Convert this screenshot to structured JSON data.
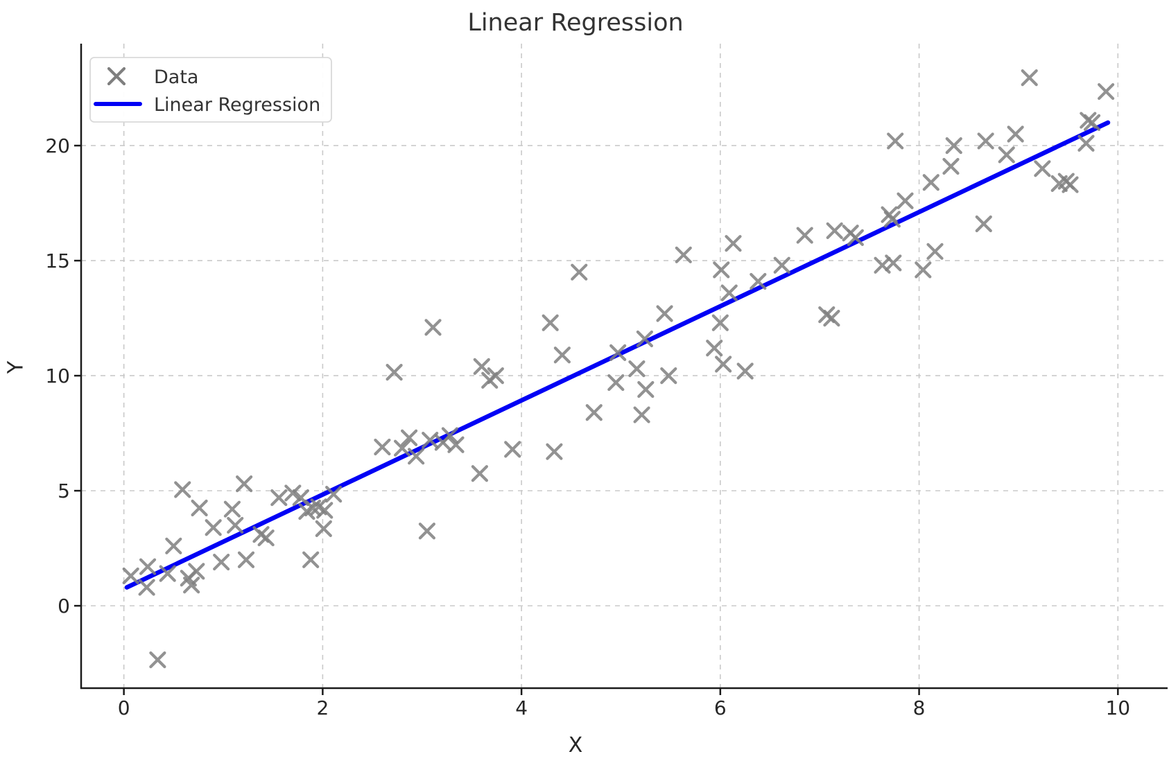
{
  "title": "Linear Regression",
  "axes": {
    "xlabel": "X",
    "ylabel": "Y",
    "x_ticks": [
      0,
      2,
      4,
      6,
      8,
      10
    ],
    "y_ticks": [
      0,
      5,
      10,
      15,
      20
    ],
    "xlim": [
      -0.43,
      10.5
    ],
    "ylim": [
      -3.58,
      24.43
    ],
    "grid": "dashed"
  },
  "legend": {
    "position": "upper-left",
    "items": [
      {
        "label": "Data",
        "glyph": "x-marker"
      },
      {
        "label": "Linear Regression",
        "glyph": "line"
      }
    ]
  },
  "colors": {
    "marker": "#7f7f7f",
    "regression_line": "#0000f5",
    "grid": "#c9c9c9",
    "spine": "#1a1a1a",
    "tick_text": "#262626",
    "title_text": "#333333"
  },
  "chart_data": {
    "type": "scatter",
    "title": "Linear Regression",
    "xlabel": "X",
    "ylabel": "Y",
    "xlim": [
      -0.43,
      10.5
    ],
    "ylim": [
      -3.58,
      24.43
    ],
    "legend_position": "upper-left",
    "grid": true,
    "series": [
      {
        "name": "Data",
        "type": "scatter",
        "marker": "x",
        "points": [
          [
            0.07,
            1.3
          ],
          [
            0.23,
            0.8
          ],
          [
            0.24,
            1.7
          ],
          [
            0.34,
            -2.35
          ],
          [
            0.44,
            1.4
          ],
          [
            0.5,
            2.6
          ],
          [
            0.59,
            5.05
          ],
          [
            0.65,
            1.2
          ],
          [
            0.68,
            0.9
          ],
          [
            0.73,
            1.5
          ],
          [
            0.76,
            4.25
          ],
          [
            0.9,
            3.4
          ],
          [
            0.98,
            1.9
          ],
          [
            1.09,
            4.2
          ],
          [
            1.12,
            3.5
          ],
          [
            1.21,
            5.3
          ],
          [
            1.23,
            2.0
          ],
          [
            1.38,
            3.1
          ],
          [
            1.43,
            2.95
          ],
          [
            1.56,
            4.7
          ],
          [
            1.7,
            4.9
          ],
          [
            1.78,
            4.7
          ],
          [
            1.84,
            4.1
          ],
          [
            1.9,
            4.25
          ],
          [
            1.96,
            4.3
          ],
          [
            2.02,
            4.15
          ],
          [
            2.11,
            4.85
          ],
          [
            2.01,
            3.35
          ],
          [
            1.88,
            2.0
          ],
          [
            2.6,
            6.9
          ],
          [
            2.8,
            6.85
          ],
          [
            2.87,
            7.3
          ],
          [
            2.94,
            6.5
          ],
          [
            3.08,
            7.2
          ],
          [
            3.21,
            7.1
          ],
          [
            3.28,
            7.4
          ],
          [
            3.34,
            7.0
          ],
          [
            2.72,
            10.15
          ],
          [
            3.11,
            12.1
          ],
          [
            3.05,
            3.25
          ],
          [
            3.58,
            5.75
          ],
          [
            3.6,
            10.4
          ],
          [
            3.68,
            9.8
          ],
          [
            3.74,
            10.0
          ],
          [
            3.91,
            6.8
          ],
          [
            4.29,
            12.3
          ],
          [
            4.33,
            6.7
          ],
          [
            4.41,
            10.9
          ],
          [
            4.58,
            14.5
          ],
          [
            4.73,
            8.4
          ],
          [
            4.95,
            9.7
          ],
          [
            4.97,
            11.0
          ],
          [
            5.16,
            10.3
          ],
          [
            5.21,
            8.3
          ],
          [
            5.24,
            11.6
          ],
          [
            5.25,
            9.4
          ],
          [
            5.44,
            12.7
          ],
          [
            5.48,
            10.0
          ],
          [
            5.63,
            15.25
          ],
          [
            5.94,
            11.2
          ],
          [
            6.0,
            12.3
          ],
          [
            6.01,
            14.6
          ],
          [
            6.03,
            10.5
          ],
          [
            6.09,
            13.6
          ],
          [
            6.13,
            15.75
          ],
          [
            6.25,
            10.2
          ],
          [
            6.38,
            14.1
          ],
          [
            6.62,
            14.8
          ],
          [
            6.85,
            16.1
          ],
          [
            7.07,
            12.65
          ],
          [
            7.12,
            12.5
          ],
          [
            7.15,
            16.3
          ],
          [
            7.31,
            16.2
          ],
          [
            7.36,
            16.0
          ],
          [
            7.63,
            14.8
          ],
          [
            7.7,
            17.0
          ],
          [
            7.73,
            16.8
          ],
          [
            7.74,
            14.9
          ],
          [
            7.76,
            20.2
          ],
          [
            7.86,
            17.6
          ],
          [
            8.04,
            14.6
          ],
          [
            8.12,
            18.4
          ],
          [
            8.16,
            15.4
          ],
          [
            8.32,
            19.1
          ],
          [
            8.35,
            20.0
          ],
          [
            8.65,
            16.6
          ],
          [
            8.67,
            20.2
          ],
          [
            8.88,
            19.6
          ],
          [
            8.97,
            20.5
          ],
          [
            9.11,
            22.95
          ],
          [
            9.24,
            19.0
          ],
          [
            9.41,
            18.35
          ],
          [
            9.48,
            18.45
          ],
          [
            9.52,
            18.3
          ],
          [
            9.68,
            20.1
          ],
          [
            9.7,
            21.1
          ],
          [
            9.74,
            21.0
          ],
          [
            9.88,
            22.35
          ]
        ]
      },
      {
        "name": "Linear Regression",
        "type": "line",
        "points": [
          [
            0.03,
            0.8
          ],
          [
            9.9,
            21.0
          ]
        ]
      }
    ]
  }
}
